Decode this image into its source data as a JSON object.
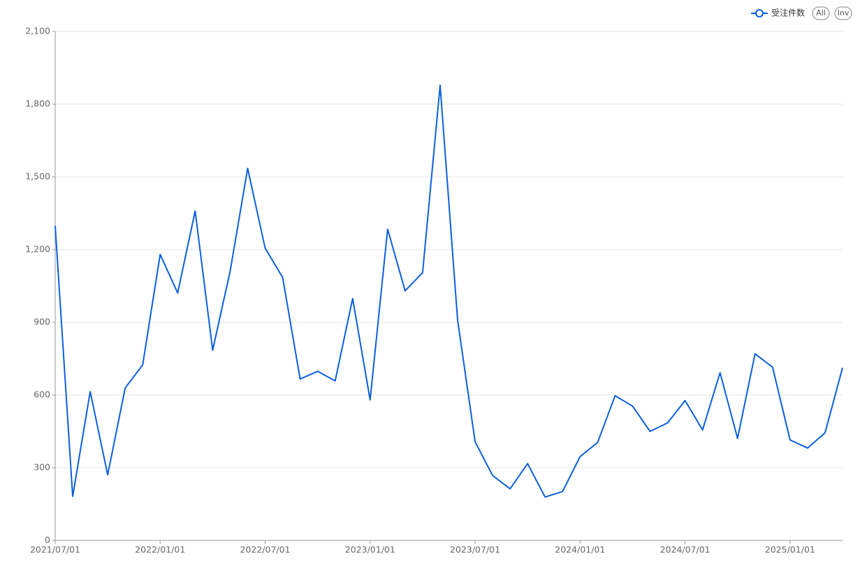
{
  "chart_data": {
    "type": "line",
    "x": [
      "2021/07/01",
      "2021/08/01",
      "2021/09/01",
      "2021/10/01",
      "2021/11/01",
      "2021/12/01",
      "2022/01/01",
      "2022/02/01",
      "2022/03/01",
      "2022/04/01",
      "2022/05/01",
      "2022/06/01",
      "2022/07/01",
      "2022/08/01",
      "2022/09/01",
      "2022/10/01",
      "2022/11/01",
      "2022/12/01",
      "2023/01/01",
      "2023/02/01",
      "2023/03/01",
      "2023/04/01",
      "2023/05/01",
      "2023/06/01",
      "2023/07/01",
      "2023/08/01",
      "2023/09/01",
      "2023/10/01",
      "2023/11/01",
      "2023/12/01",
      "2024/01/01",
      "2024/02/01",
      "2024/03/01",
      "2024/04/01",
      "2024/05/01",
      "2024/06/01",
      "2024/07/01",
      "2024/08/01",
      "2024/09/01",
      "2024/10/01",
      "2024/11/01",
      "2024/12/01",
      "2025/01/01",
      "2025/02/01",
      "2025/03/01",
      "2025/04/01"
    ],
    "series": [
      {
        "name": "受注件数",
        "color": "#0b5fde",
        "values": [
          1298,
          182,
          614,
          271,
          629,
          724,
          1180,
          1021,
          1359,
          785,
          1111,
          1535,
          1206,
          1085,
          666,
          698,
          658,
          998,
          580,
          1284,
          1030,
          1105,
          1878,
          909,
          407,
          268,
          213,
          317,
          179,
          202,
          346,
          404,
          597,
          554,
          450,
          485,
          577,
          456,
          692,
          421,
          770,
          715,
          415,
          381,
          444,
          712
        ]
      }
    ],
    "xticks": [
      "2021/07/01",
      "2022/01/01",
      "2022/07/01",
      "2023/01/01",
      "2023/07/01",
      "2024/01/01",
      "2024/07/01",
      "2025/01/01"
    ],
    "ylim": [
      0,
      2100
    ],
    "yticks": [
      0,
      300,
      600,
      900,
      {
        "value": 1200,
        "label": "1,200"
      },
      {
        "value": 1500,
        "label": "1,500"
      },
      {
        "value": 1800,
        "label": "1,800"
      },
      {
        "value": 2100,
        "label": "2,100"
      }
    ],
    "grid": true,
    "legend_buttons": [
      "All",
      "Inv"
    ]
  }
}
